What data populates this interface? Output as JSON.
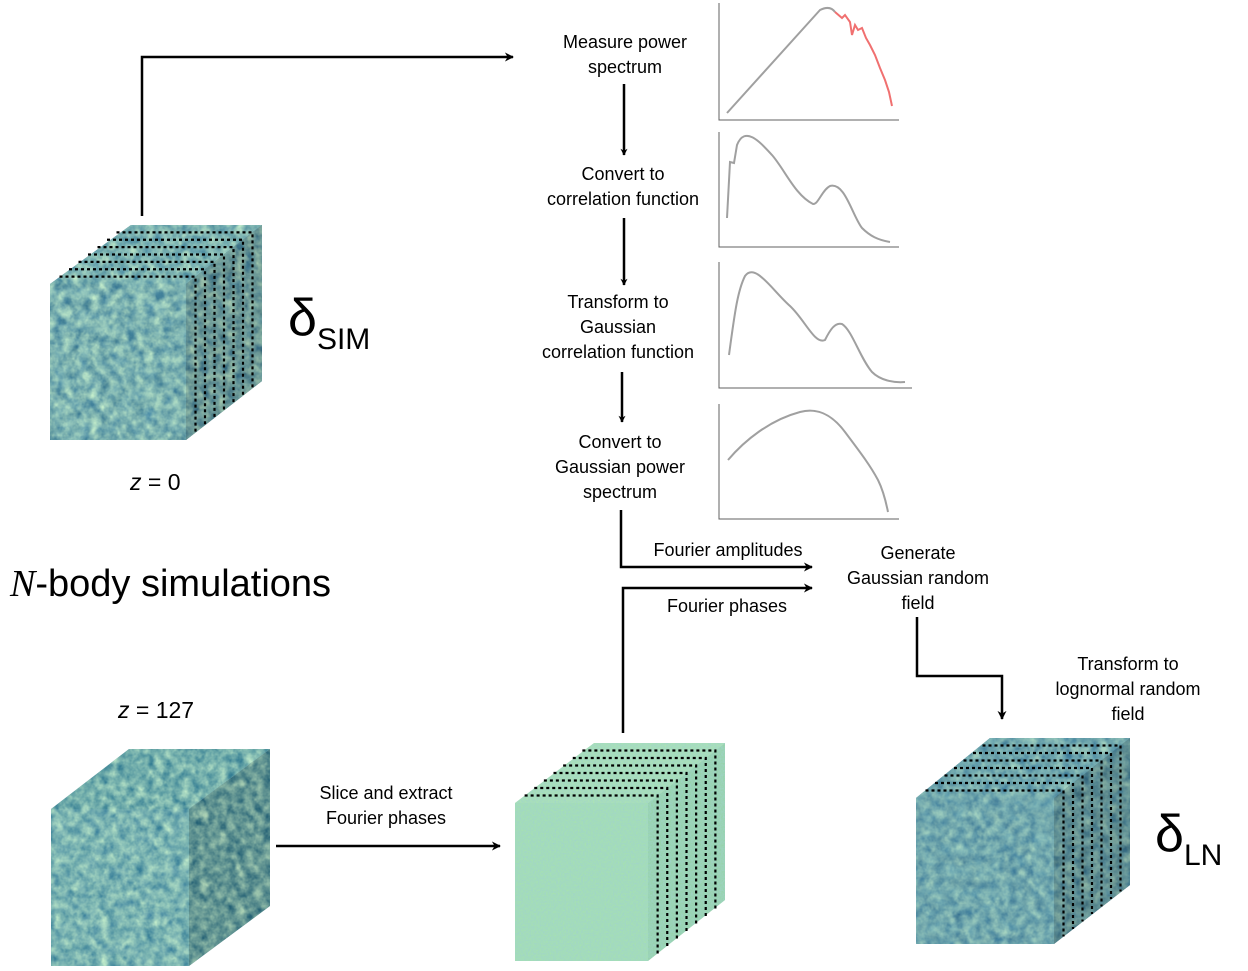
{
  "steps": {
    "measure": [
      "Measure power",
      "spectrum"
    ],
    "convert_corr": [
      "Convert to",
      "correlation function"
    ],
    "transform_gauss": [
      "Transform to",
      "Gaussian",
      "correlation function"
    ],
    "convert_power": [
      "Convert to",
      "Gaussian power",
      "spectrum"
    ],
    "generate": [
      "Generate",
      "Gaussian random",
      "field"
    ],
    "transform_ln": [
      "Transform to",
      "lognormal random",
      "field"
    ],
    "slice": [
      "Slice and extract",
      "Fourier phases"
    ]
  },
  "arrows": {
    "amplitudes": "Fourier amplitudes",
    "phases": "Fourier phases"
  },
  "fields": {
    "sim": {
      "symbol": "δ",
      "sub": "SIM"
    },
    "ln": {
      "symbol": "δ",
      "sub": "LN"
    }
  },
  "redshifts": {
    "z0": {
      "var": "z",
      "value": " = 0"
    },
    "z127": {
      "var": "z",
      "value": " = 127"
    }
  },
  "nbody": {
    "italic": "N",
    "rest": "-body simulations"
  },
  "colors": {
    "curve": "#a0a0a0",
    "highlight": "#f07070",
    "cube_dark": "#2f6e8a",
    "cube_light": "#9fdcaa"
  }
}
